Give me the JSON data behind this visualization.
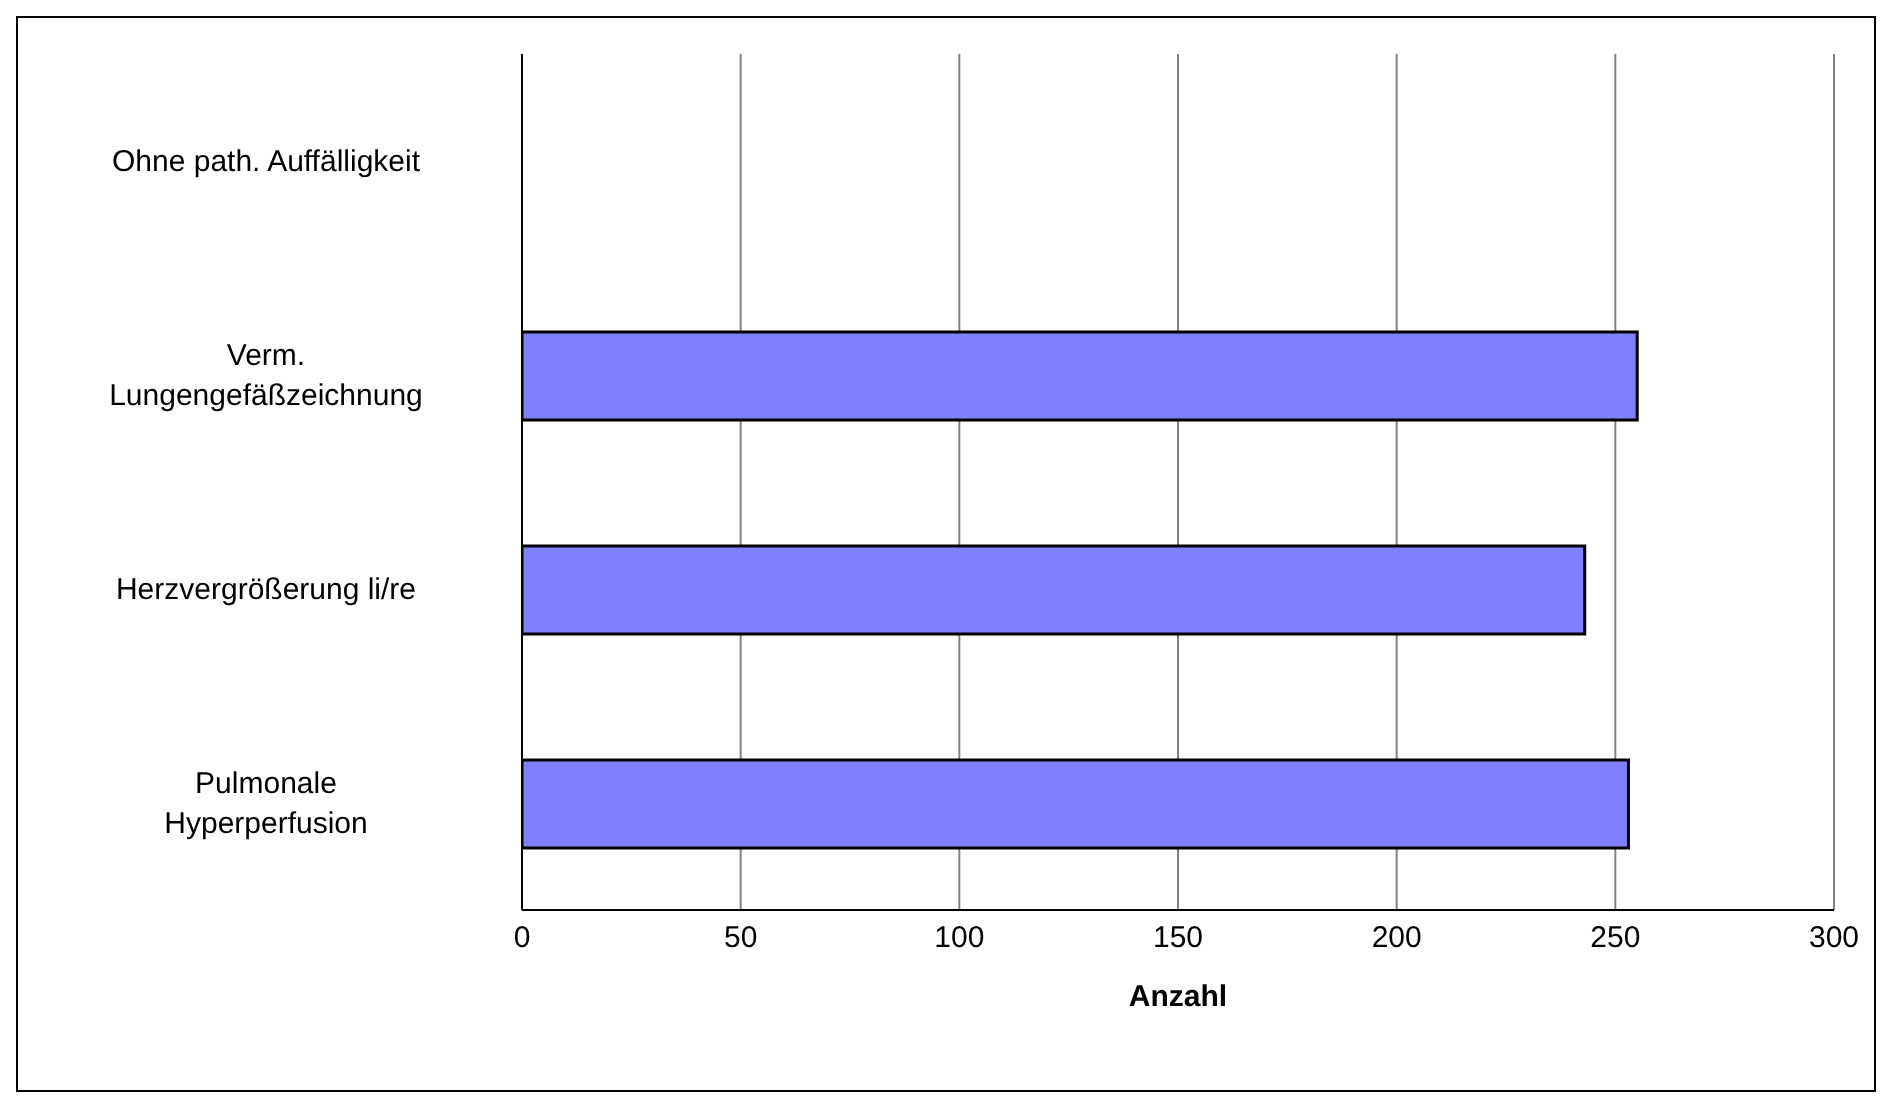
{
  "chart_data": {
    "type": "bar",
    "orientation": "horizontal",
    "xlabel": "Anzahl",
    "categories": [
      "Ohne path. Auffälligkeit",
      "Verm.\nLungengefäßzeichnung",
      "Herzvergrößerung li/re",
      "Pulmonale\nHyperperfusion"
    ],
    "values": [
      0,
      255,
      243,
      253
    ],
    "color": "#8080ff",
    "xlim": [
      0,
      300
    ],
    "xticks": [
      0,
      50,
      100,
      150,
      200,
      250,
      300
    ],
    "grid": "x"
  }
}
